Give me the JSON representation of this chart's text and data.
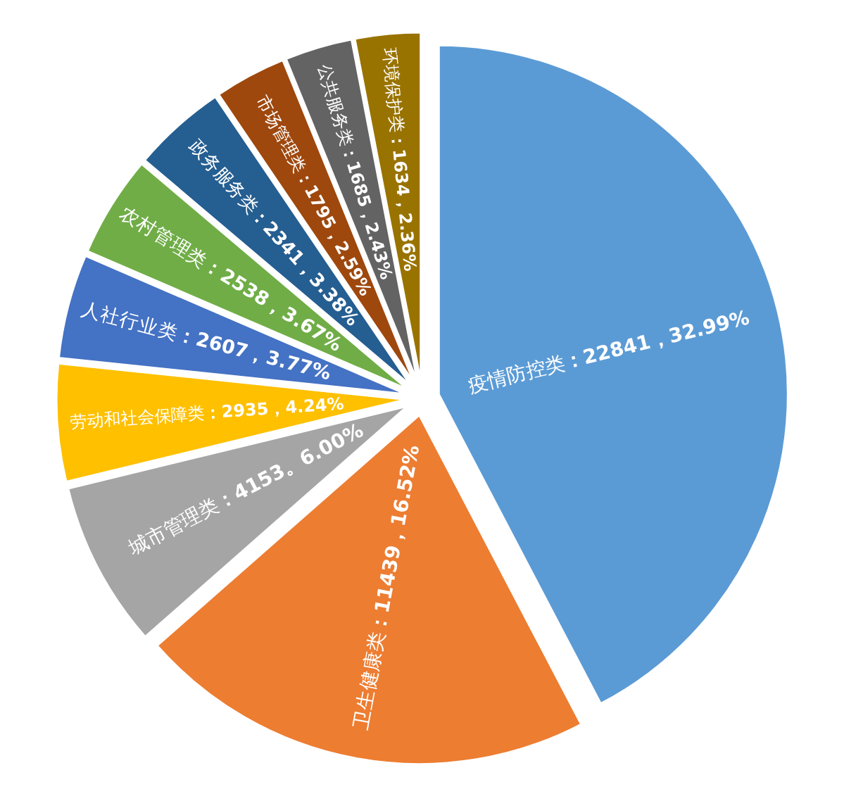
{
  "chart_data": {
    "type": "pie",
    "categories": [
      "疫情防控类",
      "卫生健康类",
      "城市管理类",
      "劳动和社会保障类",
      "人社行业类",
      "农村管理类",
      "政务服务类",
      "市场管理类",
      "公共服务类",
      "环境保护类"
    ],
    "values": [
      22841,
      11439,
      4153,
      2935,
      2607,
      2538,
      2341,
      1795,
      1685,
      1634
    ],
    "value_labels": [
      "：22841，32.99%",
      "：11439，16.52%",
      "：4153。6.00%",
      "：2935，4.24%",
      "：2607，3.77%",
      "：2538，3.67%",
      "：2341，3.38%",
      "：1795，2.59%",
      "：1685，2.43%",
      "：1634，2.36%"
    ],
    "colors": [
      "#5b9bd5",
      "#ed7d31",
      "#a5a5a5",
      "#ffc000",
      "#4472c4",
      "#70ad47",
      "#255e91",
      "#9e480e",
      "#636363",
      "#997300"
    ]
  }
}
